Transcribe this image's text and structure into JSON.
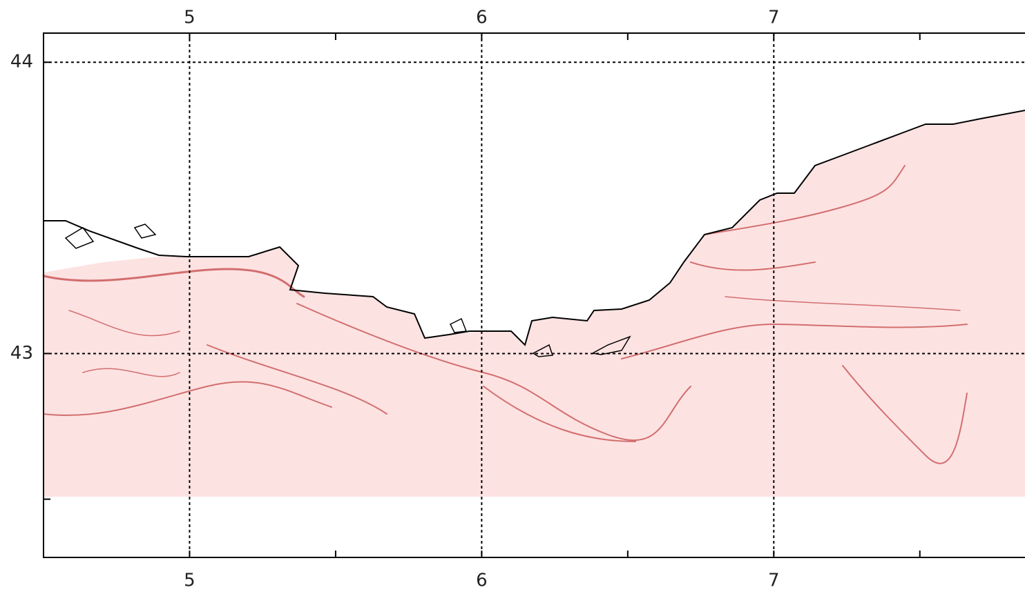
{
  "chart_data": {
    "type": "map",
    "xlim": [
      4.5,
      7.86
    ],
    "ylim": [
      42.3,
      44.1
    ],
    "xticks": [
      5,
      6,
      7
    ],
    "yticks": [
      43,
      44
    ],
    "minor_xticks": [
      4.5,
      5.5,
      6.5,
      7.5
    ],
    "minor_yticks": [
      42.5
    ],
    "grid": true
  }
}
